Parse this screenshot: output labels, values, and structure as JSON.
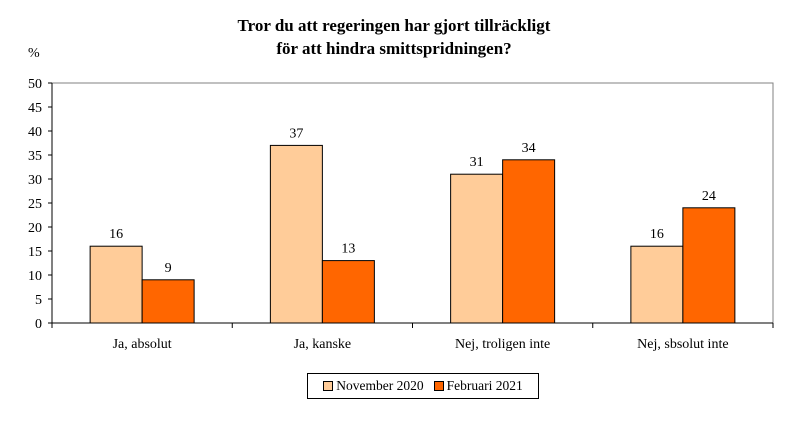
{
  "chart_data": {
    "type": "bar",
    "title_line1": "Tror du att regeringen har gjort tillräckligt",
    "title_line2": "för att hindra smittspridningen?",
    "ylabel": "%",
    "xlabel": "",
    "ylim": [
      0,
      50
    ],
    "yticks": [
      0,
      5,
      10,
      15,
      20,
      25,
      30,
      35,
      40,
      45,
      50
    ],
    "categories": [
      "Ja, absolut",
      "Ja, kanske",
      "Nej, troligen inte",
      "Nej, sbsolut inte"
    ],
    "series": [
      {
        "name": "November 2020",
        "values": [
          16,
          37,
          31,
          16
        ],
        "color": "#FFCC99"
      },
      {
        "name": "Februari 2021",
        "values": [
          9,
          13,
          34,
          24
        ],
        "color": "#FF6600"
      }
    ],
    "grid": false,
    "legend_position": "bottom"
  }
}
